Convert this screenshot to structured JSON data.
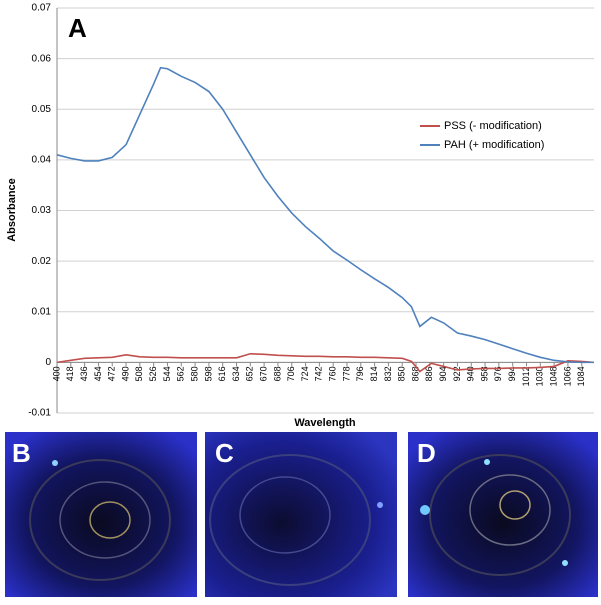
{
  "chart_data": {
    "type": "line",
    "panel_label": "A",
    "x_label": "Wavelength",
    "y_label": "Absorbance",
    "x": [
      400,
      418,
      436,
      454,
      472,
      490,
      508,
      526,
      535,
      544,
      562,
      580,
      598,
      616,
      634,
      652,
      670,
      688,
      706,
      724,
      742,
      760,
      778,
      796,
      814,
      832,
      850,
      862,
      873,
      888,
      904,
      922,
      940,
      958,
      976,
      994,
      1012,
      1030,
      1048,
      1066,
      1084,
      1100
    ],
    "series": [
      {
        "name": "PSS (- modification)",
        "color": "#c0504d",
        "values": [
          0.0,
          0.0004,
          0.0008,
          0.0009,
          0.001,
          0.0015,
          0.0011,
          0.001,
          0.001,
          0.001,
          0.0009,
          0.0009,
          0.0009,
          0.0009,
          0.0009,
          0.0017,
          0.0016,
          0.0014,
          0.0013,
          0.0012,
          0.0012,
          0.0011,
          0.0011,
          0.001,
          0.001,
          0.0009,
          0.0008,
          0.0002,
          -0.0018,
          -0.0002,
          -0.0008,
          -0.0015,
          -0.0013,
          -0.0012,
          -0.0012,
          -0.0011,
          -0.0011,
          -0.001,
          -0.0008,
          0.0003,
          0.0002,
          0.0
        ]
      },
      {
        "name": "PAH (+ modification)",
        "color": "#4f81bd",
        "values": [
          0.041,
          0.0403,
          0.0398,
          0.0398,
          0.0405,
          0.043,
          0.049,
          0.055,
          0.0582,
          0.058,
          0.0565,
          0.0553,
          0.0535,
          0.05,
          0.0455,
          0.041,
          0.0365,
          0.0328,
          0.0295,
          0.0268,
          0.0245,
          0.022,
          0.0202,
          0.0183,
          0.0165,
          0.0148,
          0.0128,
          0.011,
          0.0071,
          0.0089,
          0.0078,
          0.0058,
          0.0052,
          0.0045,
          0.0036,
          0.0027,
          0.0018,
          0.001,
          0.0004,
          0.0001,
          0.0,
          0.0
        ]
      }
    ],
    "xlim": [
      400,
      1100
    ],
    "xticks": [
      400,
      418,
      436,
      454,
      472,
      490,
      508,
      526,
      544,
      562,
      580,
      598,
      616,
      634,
      652,
      670,
      688,
      706,
      724,
      742,
      760,
      778,
      796,
      814,
      832,
      850,
      868,
      886,
      904,
      922,
      940,
      958,
      976,
      994,
      1012,
      1030,
      1048,
      1066,
      1084
    ],
    "ylim": [
      -0.01,
      0.07
    ],
    "yticks": [
      -0.01,
      0,
      0.01,
      0.02,
      0.03,
      0.04,
      0.05,
      0.06,
      0.07
    ],
    "grid": true,
    "legend": "right"
  },
  "photo_labels": [
    "B",
    "C",
    "D"
  ]
}
